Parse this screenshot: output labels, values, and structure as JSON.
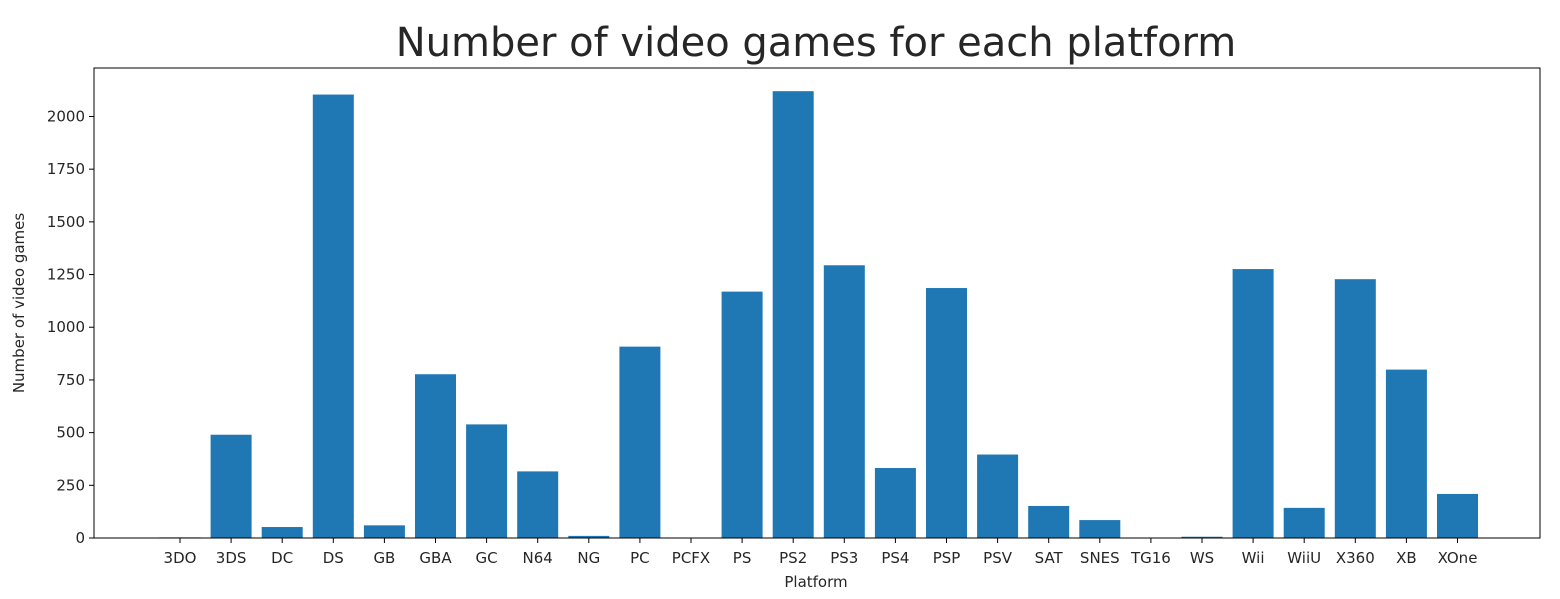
{
  "chart_data": {
    "type": "bar",
    "title": "Number of video games for each platform",
    "xlabel": "Platform",
    "ylabel": "Number of video games",
    "categories": [
      "3DO",
      "3DS",
      "DC",
      "DS",
      "GB",
      "GBA",
      "GC",
      "N64",
      "NG",
      "PC",
      "PCFX",
      "PS",
      "PS2",
      "PS3",
      "PS4",
      "PSP",
      "PSV",
      "SAT",
      "SNES",
      "TG16",
      "WS",
      "Wii",
      "WiiU",
      "X360",
      "XB",
      "XOne"
    ],
    "values": [
      3,
      490,
      52,
      2104,
      60,
      777,
      539,
      316,
      10,
      908,
      1,
      1169,
      2120,
      1294,
      332,
      1186,
      396,
      152,
      85,
      2,
      6,
      1276,
      143,
      1228,
      799,
      209
    ],
    "ylim": [
      0,
      2230
    ],
    "yticks": [
      0,
      250,
      500,
      750,
      1000,
      1250,
      1500,
      1750,
      2000
    ],
    "grid": false,
    "bar_color": "#1f77b4"
  }
}
